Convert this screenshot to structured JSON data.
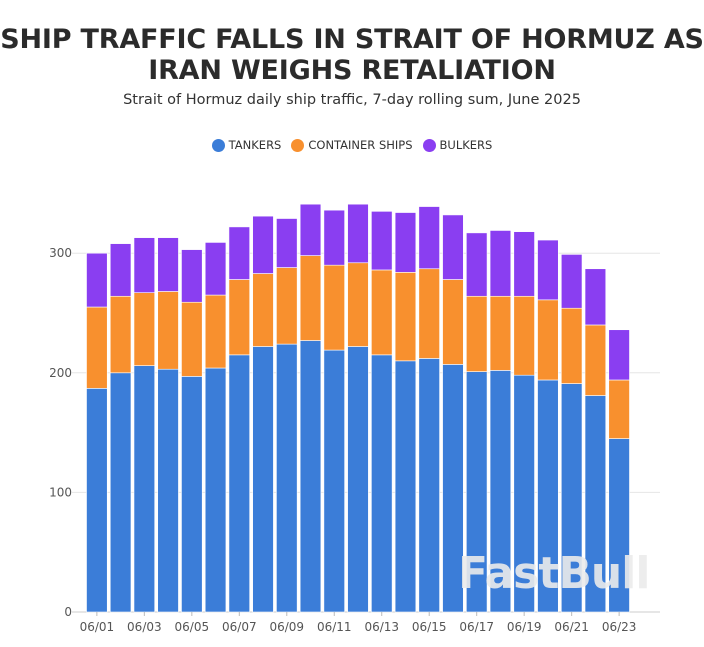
{
  "chart_data": {
    "type": "bar",
    "stacked": true,
    "title": "SHIP TRAFFIC FALLS IN STRAIT OF HORMUZ AS IRAN WEIGHS RETALIATION",
    "subtitle": "Strait of Hormuz daily ship traffic, 7-day rolling sum, June 2025",
    "categories": [
      "06/01",
      "06/02",
      "06/03",
      "06/04",
      "06/05",
      "06/06",
      "06/07",
      "06/08",
      "06/09",
      "06/10",
      "06/11",
      "06/12",
      "06/13",
      "06/14",
      "06/15",
      "06/16",
      "06/17",
      "06/18",
      "06/19",
      "06/20",
      "06/21",
      "06/22",
      "06/23"
    ],
    "tick_labels": [
      "06/01",
      "06/03",
      "06/05",
      "06/07",
      "06/09",
      "06/11",
      "06/13",
      "06/15",
      "06/17",
      "06/19",
      "06/21",
      "06/23"
    ],
    "series": [
      {
        "name": "TANKERS",
        "color": "#3b7dd8",
        "values": [
          187,
          200,
          206,
          203,
          197,
          204,
          215,
          222,
          224,
          227,
          219,
          222,
          215,
          210,
          212,
          207,
          201,
          202,
          198,
          194,
          191,
          181,
          145
        ]
      },
      {
        "name": "CONTAINER SHIPS",
        "color": "#f8902e",
        "values": [
          68,
          64,
          61,
          65,
          62,
          61,
          63,
          61,
          64,
          71,
          71,
          70,
          71,
          74,
          75,
          71,
          63,
          62,
          66,
          67,
          63,
          59,
          49
        ]
      },
      {
        "name": "BULKERS",
        "color": "#8a3ef1",
        "values": [
          45,
          44,
          46,
          45,
          44,
          44,
          44,
          48,
          41,
          43,
          46,
          49,
          49,
          50,
          52,
          54,
          53,
          55,
          54,
          50,
          45,
          47,
          42
        ]
      }
    ],
    "y_ticks": [
      "0",
      "100",
      "200",
      "300"
    ],
    "ylim": [
      0,
      350
    ],
    "xlabel": "",
    "ylabel": "",
    "grid": true,
    "legend_position": "top-center"
  },
  "watermark": "FastBull"
}
